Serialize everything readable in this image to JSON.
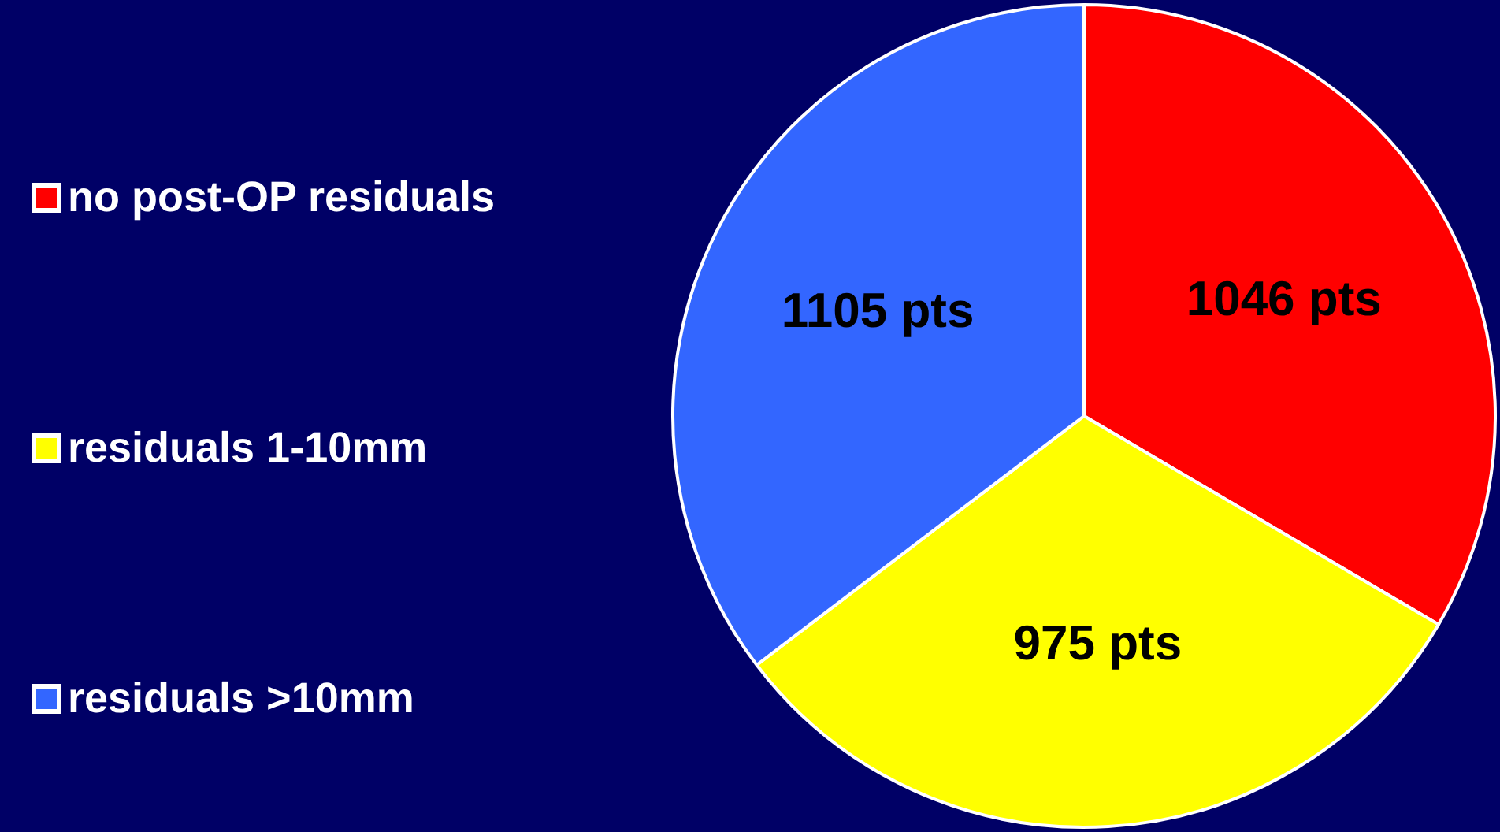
{
  "chart_data": {
    "type": "pie",
    "categories": [
      "no post-OP residuals",
      "residuals 1-10mm",
      "residuals >10mm"
    ],
    "values": [
      1046,
      975,
      1105
    ],
    "colors": [
      "#ff0000",
      "#ffff00",
      "#3366ff"
    ],
    "value_labels": [
      "1046 pts",
      "975 pts",
      "1105 pts"
    ],
    "legend": "left"
  }
}
